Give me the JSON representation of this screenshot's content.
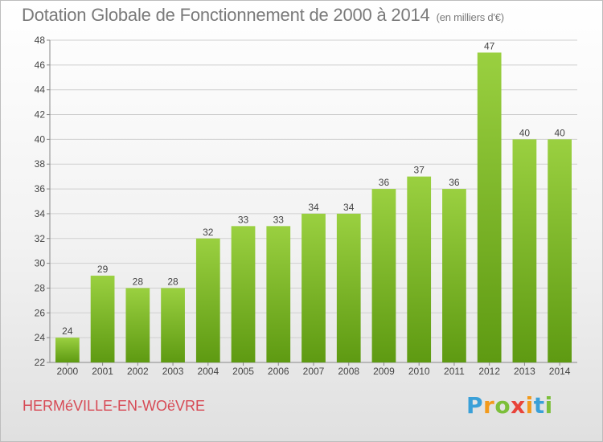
{
  "title": "Dotation Globale de Fonctionnement de 2000 à 2014",
  "unit": "(en milliers d'€)",
  "commune": "HERMéVILLE-EN-WOëVRE",
  "logo": {
    "letters": [
      "P",
      "r",
      "o",
      "x",
      "i",
      "t",
      "i"
    ],
    "colors": [
      "#3aa0d8",
      "#f29a1c",
      "#7cbf3a",
      "#e8443a",
      "#f29a1c",
      "#3aa0d8",
      "#7cbf3a"
    ]
  },
  "colors": {
    "bar_top": "#9ad040",
    "bar_bottom": "#5e9a12",
    "grid": "#cfcfcf",
    "title": "#7a7a7a",
    "commune": "#d74a55"
  },
  "chart_data": {
    "type": "bar",
    "title": "Dotation Globale de Fonctionnement de 2000 à 2014",
    "subtitle": "(en milliers d'€)",
    "categories": [
      "2000",
      "2001",
      "2002",
      "2003",
      "2004",
      "2005",
      "2006",
      "2007",
      "2008",
      "2009",
      "2010",
      "2011",
      "2012",
      "2013",
      "2014"
    ],
    "values": [
      24,
      29,
      28,
      28,
      32,
      33,
      33,
      34,
      34,
      36,
      37,
      36,
      47,
      40,
      40
    ],
    "ylim": [
      22,
      48
    ],
    "yticks": [
      22,
      24,
      26,
      28,
      30,
      32,
      34,
      36,
      38,
      40,
      42,
      44,
      46,
      48
    ],
    "grid": true,
    "data_labels": true
  }
}
